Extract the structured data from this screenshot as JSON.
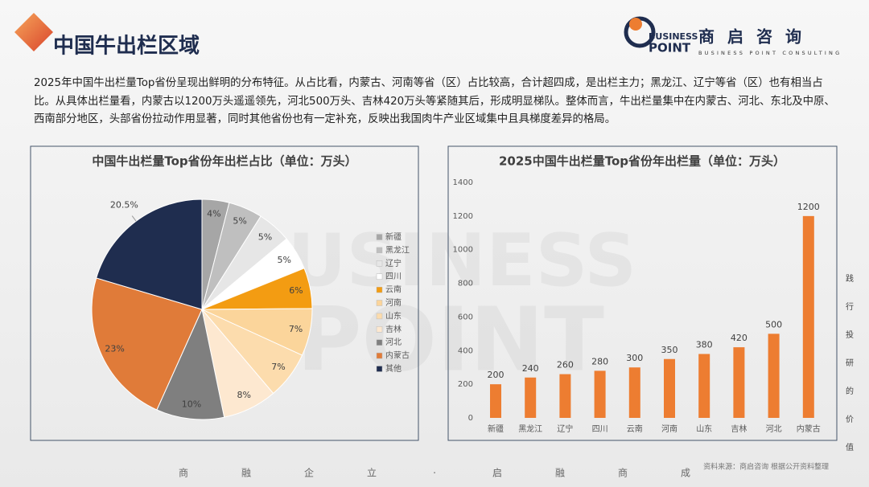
{
  "header": {
    "title": "中国牛出栏区域"
  },
  "logo": {
    "word1": "BUSINESS",
    "word2": "POINT",
    "brand": "商启咨询",
    "tagline": "BUSINESS POINT CONSULTING"
  },
  "summary": "2025年中国牛出栏量Top省份呈现出鲜明的分布特征。从占比看，内蒙古、河南等省（区）占比较高，合计超四成，是出栏主力；黑龙江、辽宁等省（区）也有相当占比。从具体出栏量看，内蒙古以1200万头遥遥领先，河北500万头、吉林420万头等紧随其后，形成明显梯队。整体而言，牛出栏量集中在内蒙古、河北、东北及中原、西南部分地区，头部省份拉动作用显著，同时其他省份也有一定补充，反映出我国肉牛产业区域集中且具梯度差异的格局。",
  "watermark": [
    "BUSINESS",
    "POINT"
  ],
  "chart_data": [
    {
      "type": "pie",
      "title": "中国牛出栏量Top省份年出栏占比（单位：万头）",
      "categories": [
        "新疆",
        "黑龙江",
        "辽宁",
        "四川",
        "云南",
        "河南",
        "山东",
        "吉林",
        "河北",
        "内蒙古",
        "其他"
      ],
      "values": [
        4,
        5,
        5,
        5,
        6,
        7,
        7,
        8,
        10,
        23,
        20.5
      ],
      "value_labels": [
        "4%",
        "5%",
        "5%",
        "5%",
        "6%",
        "7%",
        "7%",
        "8%",
        "10%",
        "23%",
        "20.5%"
      ],
      "colors": [
        "#a6a6a6",
        "#bfbfbf",
        "#e6e6e6",
        "#ffffff",
        "#f39c12",
        "#fbd59b",
        "#fcdcad",
        "#fde8d0",
        "#7f7f7f",
        "#e07b39",
        "#1f2d4f"
      ],
      "legend": "right"
    },
    {
      "type": "bar",
      "title": "2025中国牛出栏量Top省份年出栏量（单位：万头）",
      "categories": [
        "新疆",
        "黑龙江",
        "辽宁",
        "四川",
        "云南",
        "河南",
        "山东",
        "吉林",
        "河北",
        "内蒙古"
      ],
      "values": [
        200,
        240,
        260,
        280,
        300,
        350,
        380,
        420,
        500,
        1200
      ],
      "color": "#ed7d31",
      "ylim": [
        0,
        1400
      ],
      "yticks": [
        0,
        200,
        400,
        600,
        800,
        1000,
        1200,
        1400
      ],
      "grid": false
    }
  ],
  "side_slogan": [
    "践",
    "行",
    "投",
    "研",
    "的",
    "价",
    "值"
  ],
  "footer": {
    "motto": [
      "商",
      "融",
      "企",
      "立",
      "·",
      "启",
      "融",
      "商",
      "成"
    ],
    "source": "资料来源：商启咨询 根据公开资料整理"
  }
}
